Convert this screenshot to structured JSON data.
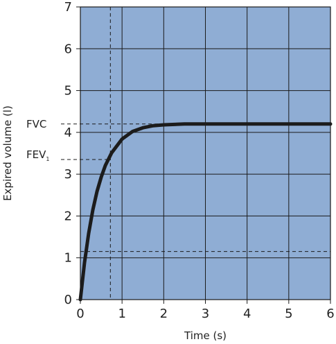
{
  "chart_data": {
    "type": "line",
    "xlabel": "Time (s)",
    "ylabel": "Expired volume (l)",
    "xlim": [
      0,
      6
    ],
    "ylim": [
      0,
      7
    ],
    "x_ticks": [
      "0",
      "1",
      "2",
      "3",
      "4",
      "5",
      "6"
    ],
    "y_ticks": [
      "0",
      "1",
      "2",
      "3",
      "4",
      "5",
      "6",
      "7"
    ],
    "grid": true,
    "series": [
      {
        "x": [
          0,
          0.1,
          0.2,
          0.3,
          0.4,
          0.5,
          0.6,
          0.75,
          1.0,
          1.25,
          1.5,
          1.75,
          2.0,
          2.5,
          3.0,
          3.5,
          4.0,
          5.0,
          6.0
        ],
        "y": [
          0,
          0.89,
          1.59,
          2.15,
          2.59,
          2.93,
          3.21,
          3.51,
          3.84,
          4.02,
          4.11,
          4.16,
          4.18,
          4.2,
          4.2,
          4.2,
          4.2,
          4.2,
          4.2
        ]
      }
    ],
    "annotations": {
      "fvc": {
        "label": "FVC",
        "y": 4.2
      },
      "fev1": {
        "label": "FEV",
        "subscript": "1",
        "y": 3.35,
        "x": 0.72
      },
      "reference_line": {
        "y": 1.15
      }
    }
  },
  "colors": {
    "plot_background": "#8fadd4",
    "grid": "#1a1a1a",
    "curve": "#1c1c1c"
  }
}
